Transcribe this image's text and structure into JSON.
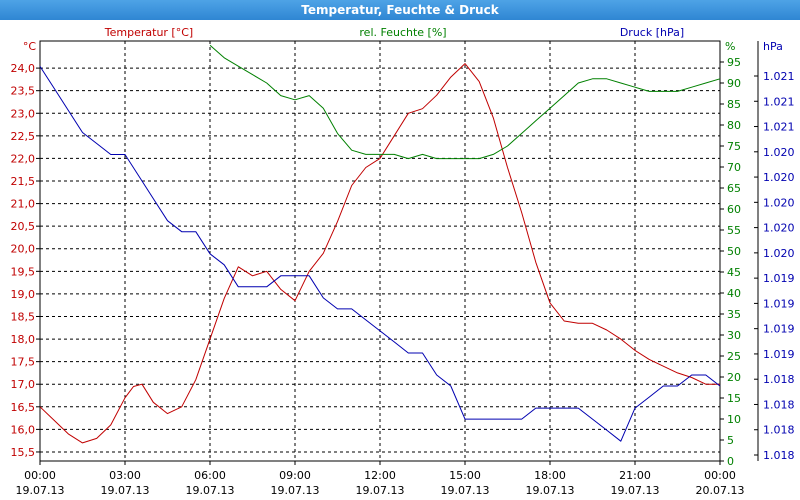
{
  "window": {
    "title": "Temperatur, Feuchte & Druck"
  },
  "chart_data": {
    "type": "line",
    "title": "Temperatur, Feuchte & Druck",
    "grid": true,
    "legend": "top",
    "x_ticks": [
      {
        "time": "00:00",
        "date": "19.07.13"
      },
      {
        "time": "03:00",
        "date": "19.07.13"
      },
      {
        "time": "06:00",
        "date": "19.07.13"
      },
      {
        "time": "09:00",
        "date": "19.07.13"
      },
      {
        "time": "12:00",
        "date": "19.07.13"
      },
      {
        "time": "15:00",
        "date": "19.07.13"
      },
      {
        "time": "18:00",
        "date": "19.07.13"
      },
      {
        "time": "21:00",
        "date": "19.07.13"
      },
      {
        "time": "00:00",
        "date": "20.07.13"
      }
    ],
    "x_range_hours": [
      0,
      24
    ],
    "axes": {
      "temperature": {
        "unit": "°C",
        "range": [
          15.3,
          24.6
        ],
        "color": "#c00000",
        "tick_labels": [
          "15,5",
          "16,0",
          "16,5",
          "17,0",
          "17,5",
          "18,0",
          "18,5",
          "19,0",
          "19,5",
          "20,0",
          "20,5",
          "21,0",
          "21,5",
          "22,0",
          "22,5",
          "23,0",
          "23,5",
          "24,0"
        ],
        "tick_values": [
          15.5,
          16.0,
          16.5,
          17.0,
          17.5,
          18.0,
          18.5,
          19.0,
          19.5,
          20.0,
          20.5,
          21.0,
          21.5,
          22.0,
          22.5,
          23.0,
          23.5,
          24.0
        ]
      },
      "humidity": {
        "unit": "%",
        "range": [
          0,
          100
        ],
        "color": "#008000",
        "tick_labels": [
          "0",
          "5",
          "10",
          "15",
          "20",
          "25",
          "30",
          "35",
          "40",
          "45",
          "50",
          "55",
          "60",
          "65",
          "70",
          "75",
          "80",
          "85",
          "90",
          "95"
        ],
        "tick_values": [
          0,
          5,
          10,
          15,
          20,
          25,
          30,
          35,
          40,
          45,
          50,
          55,
          60,
          65,
          70,
          75,
          80,
          85,
          90,
          95
        ]
      },
      "pressure": {
        "unit": "hPa",
        "color": "#0000b0",
        "tick_labels": [
          "1.018",
          "1.018",
          "1.018",
          "1.018",
          "1.019",
          "1.019",
          "1.019",
          "1.019",
          "1.020",
          "1.020",
          "1.020",
          "1.020",
          "1.020",
          "1.021",
          "1.021",
          "1.021"
        ]
      }
    },
    "series": [
      {
        "name": "Temperatur [°C]",
        "axis": "temperature",
        "color": "#c00000",
        "x": [
          0,
          0.5,
          1,
          1.5,
          2,
          2.5,
          3,
          3.3,
          3.6,
          4,
          4.5,
          5,
          5.5,
          6,
          6.5,
          7,
          7.5,
          8,
          8.5,
          9,
          9.5,
          10,
          10.5,
          11,
          11.5,
          12,
          12.5,
          13,
          13.5,
          14,
          14.5,
          15,
          15.5,
          16,
          16.5,
          17,
          17.5,
          18,
          18.5,
          19,
          19.5,
          20,
          20.5,
          21,
          21.5,
          22,
          22.5,
          23,
          23.5,
          24
        ],
        "y": [
          16.5,
          16.2,
          15.9,
          15.7,
          15.8,
          16.1,
          16.7,
          16.95,
          17.0,
          16.6,
          16.35,
          16.5,
          17.1,
          18.0,
          18.9,
          19.6,
          19.4,
          19.5,
          19.1,
          18.85,
          19.5,
          19.9,
          20.6,
          21.4,
          21.8,
          22.0,
          22.5,
          23.0,
          23.1,
          23.4,
          23.8,
          24.1,
          23.7,
          22.9,
          21.8,
          20.8,
          19.7,
          18.8,
          18.4,
          18.35,
          18.35,
          18.2,
          18.0,
          17.75,
          17.55,
          17.4,
          17.25,
          17.15,
          17.0,
          17.0
        ]
      },
      {
        "name": "rel. Feuchte [%]",
        "axis": "humidity",
        "color": "#008000",
        "x": [
          6,
          6.5,
          7,
          7.5,
          8,
          8.5,
          9,
          9.5,
          10,
          10.5,
          11,
          11.5,
          12,
          12.5,
          13,
          13.5,
          14,
          14.5,
          15,
          15.5,
          16,
          16.5,
          17,
          17.5,
          18,
          18.5,
          19,
          19.5,
          20,
          20.5,
          21,
          21.5,
          22,
          22.5,
          23,
          23.5,
          24
        ],
        "y": [
          99,
          96,
          94,
          92,
          90,
          87,
          86,
          87,
          84,
          78,
          74,
          73,
          73,
          73,
          72,
          73,
          72,
          72,
          72,
          72,
          73,
          75,
          78,
          81,
          84,
          87,
          90,
          91,
          91,
          90,
          89,
          88,
          88,
          88,
          89,
          90,
          91
        ]
      },
      {
        "name": "Druck [hPa]",
        "axis": "pressure",
        "color": "#0000b0",
        "x": [
          0,
          0.5,
          1,
          1.5,
          2,
          2.5,
          3,
          3.5,
          4,
          4.5,
          5,
          5.5,
          6,
          6.5,
          7,
          7.5,
          8,
          8.5,
          9,
          9.5,
          10,
          10.5,
          11,
          11.5,
          12,
          12.5,
          13,
          13.5,
          14,
          14.5,
          15,
          15.5,
          16,
          16.5,
          17,
          17.5,
          18,
          18.5,
          19,
          19.5,
          20,
          20.5,
          21,
          21.5,
          22,
          22.5,
          23,
          23.5,
          24
        ],
        "y": [
          1.0213,
          1.0211,
          1.0209,
          1.0207,
          1.0206,
          1.0205,
          1.0205,
          1.0203,
          1.0201,
          1.0199,
          1.0198,
          1.0198,
          1.0196,
          1.0195,
          1.0193,
          1.0193,
          1.0193,
          1.0194,
          1.0194,
          1.0194,
          1.0192,
          1.0191,
          1.0191,
          1.019,
          1.0189,
          1.0188,
          1.0187,
          1.0187,
          1.0185,
          1.0184,
          1.0181,
          1.0181,
          1.0181,
          1.0181,
          1.0181,
          1.0182,
          1.0182,
          1.0182,
          1.0182,
          1.0181,
          1.018,
          1.0179,
          1.0182,
          1.0183,
          1.0184,
          1.0184,
          1.0185,
          1.0185,
          1.0184
        ]
      }
    ]
  }
}
